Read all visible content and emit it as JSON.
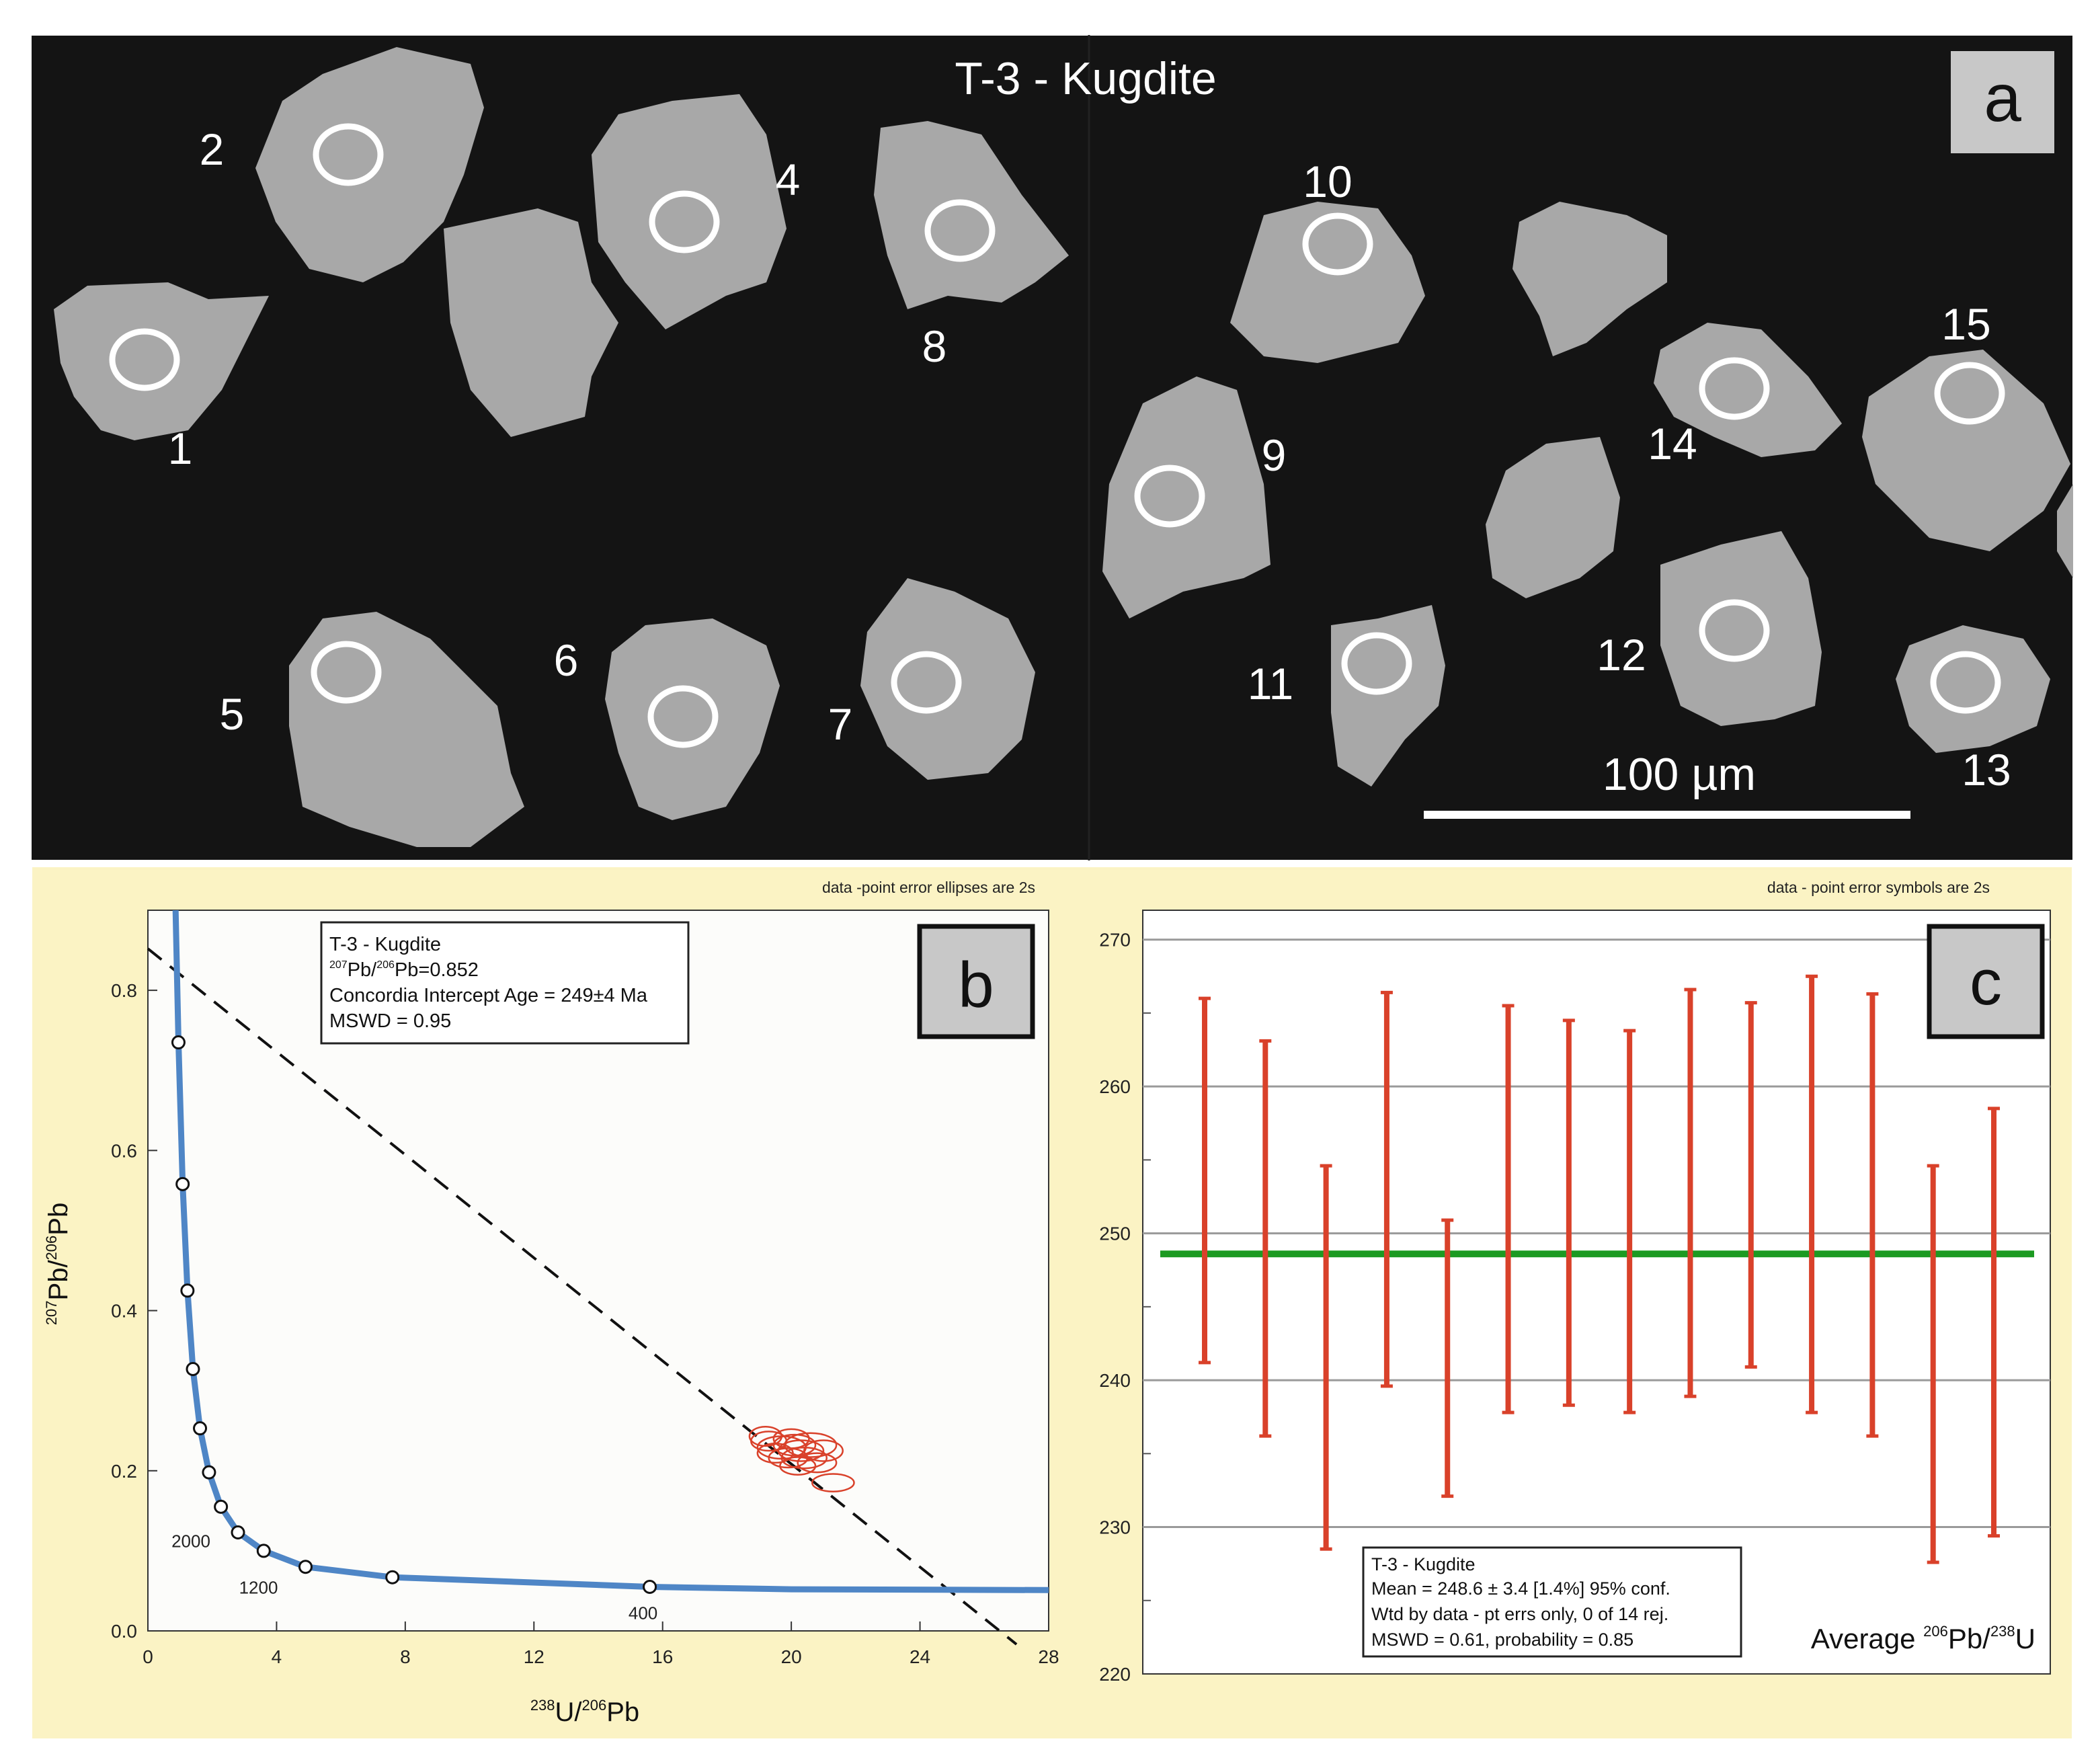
{
  "panel_a": {
    "title": "T-3 - Kugdite",
    "label": "a",
    "scale_bar_label": "100 µm",
    "grain_numbers": [
      "1",
      "2",
      "4",
      "5",
      "6",
      "7",
      "8",
      "9",
      "10",
      "11",
      "12",
      "13",
      "14",
      "15"
    ]
  },
  "chart_data": [
    {
      "type": "scatter",
      "panel_label": "b",
      "note": "data -point error ellipses are 2s",
      "xlabel_sup1": "238",
      "xlabel_base1": "U/",
      "xlabel_sup2": "206",
      "xlabel_base2": "Pb",
      "ylabel_sup1": "207",
      "ylabel_base1": "Pb/",
      "ylabel_sup2": "206",
      "ylabel_base2": "Pb",
      "xlim": [
        0,
        28
      ],
      "ylim": [
        0,
        0.9
      ],
      "x_ticks": [
        0,
        4,
        8,
        12,
        16,
        20,
        24,
        28
      ],
      "y_ticks": [
        0.0,
        0.2,
        0.4,
        0.6,
        0.8
      ],
      "x_tick_labels": [
        "0",
        "4",
        "8",
        "12",
        "16",
        "20",
        "24",
        "28"
      ],
      "y_tick_labels": [
        "0.0",
        "0.2",
        "0.4",
        "0.6",
        "0.8"
      ],
      "concordia_age_labels": [
        {
          "label": "2000",
          "x": 2.8,
          "y": 0.123
        },
        {
          "label": "1200",
          "x": 4.9,
          "y": 0.08
        },
        {
          "label": "400",
          "x": 15.6,
          "y": 0.055
        }
      ],
      "concordia_points": [
        {
          "x": 0.95,
          "y": 0.735
        },
        {
          "x": 1.08,
          "y": 0.558
        },
        {
          "x": 1.23,
          "y": 0.425
        },
        {
          "x": 1.4,
          "y": 0.327
        },
        {
          "x": 1.62,
          "y": 0.253
        },
        {
          "x": 1.9,
          "y": 0.198
        },
        {
          "x": 2.27,
          "y": 0.155
        },
        {
          "x": 2.8,
          "y": 0.123
        },
        {
          "x": 3.6,
          "y": 0.1
        },
        {
          "x": 4.9,
          "y": 0.08
        },
        {
          "x": 7.6,
          "y": 0.067
        },
        {
          "x": 15.6,
          "y": 0.055
        }
      ],
      "discordia": {
        "x0": 0,
        "y0": 0.852,
        "x1": 27.0,
        "y1": -0.017
      },
      "ellipses": [
        {
          "x": 19.3,
          "y": 0.237,
          "rx": 0.55,
          "ry": 0.012
        },
        {
          "x": 19.7,
          "y": 0.229,
          "rx": 0.75,
          "ry": 0.014
        },
        {
          "x": 20.1,
          "y": 0.232,
          "rx": 0.65,
          "ry": 0.013
        },
        {
          "x": 19.5,
          "y": 0.222,
          "rx": 0.55,
          "ry": 0.012
        },
        {
          "x": 20.3,
          "y": 0.225,
          "rx": 0.7,
          "ry": 0.013
        },
        {
          "x": 20.6,
          "y": 0.232,
          "rx": 0.8,
          "ry": 0.015
        },
        {
          "x": 19.9,
          "y": 0.216,
          "rx": 0.6,
          "ry": 0.012
        },
        {
          "x": 20.4,
          "y": 0.216,
          "rx": 0.7,
          "ry": 0.013
        },
        {
          "x": 20.8,
          "y": 0.21,
          "rx": 0.6,
          "ry": 0.012
        },
        {
          "x": 19.2,
          "y": 0.243,
          "rx": 0.5,
          "ry": 0.012
        },
        {
          "x": 20.0,
          "y": 0.24,
          "rx": 0.55,
          "ry": 0.012
        },
        {
          "x": 21.0,
          "y": 0.225,
          "rx": 0.6,
          "ry": 0.013
        },
        {
          "x": 20.2,
          "y": 0.206,
          "rx": 0.55,
          "ry": 0.011
        },
        {
          "x": 21.3,
          "y": 0.185,
          "rx": 0.65,
          "ry": 0.011
        }
      ],
      "legend": {
        "line1": "T-3 - Kugdite",
        "line2_sup1": "207",
        "line2_a": "Pb/",
        "line2_sup2": "206",
        "line2_b": "Pb=0.852",
        "line3": "Concordia Intercept Age = 249±4 Ma",
        "line4": "MSWD = 0.95"
      }
    },
    {
      "type": "errorbar",
      "panel_label": "c",
      "note": "data - point error symbols are 2s",
      "ylim": [
        220,
        272
      ],
      "y_ticks": [
        220,
        230,
        240,
        250,
        260,
        270
      ],
      "y_tick_labels": [
        "220",
        "230",
        "240",
        "250",
        "260",
        "270"
      ],
      "mean": 248.6,
      "bars": [
        {
          "low": 241.2,
          "high": 266.0
        },
        {
          "low": 236.2,
          "high": 263.1
        },
        {
          "low": 228.5,
          "high": 254.6
        },
        {
          "low": 239.6,
          "high": 266.4
        },
        {
          "low": 232.1,
          "high": 250.9
        },
        {
          "low": 237.8,
          "high": 265.5
        },
        {
          "low": 238.3,
          "high": 264.5
        },
        {
          "low": 237.8,
          "high": 263.8
        },
        {
          "low": 238.9,
          "high": 266.6
        },
        {
          "low": 240.9,
          "high": 265.7
        },
        {
          "low": 237.8,
          "high": 267.5
        },
        {
          "low": 236.2,
          "high": 266.3
        },
        {
          "low": 227.6,
          "high": 254.6
        },
        {
          "low": 229.4,
          "high": 258.5
        }
      ],
      "axis_label_a": "Average ",
      "axis_label_sup1": "206",
      "axis_label_b": "Pb/",
      "axis_label_sup2": "238",
      "axis_label_c": "U",
      "legend": {
        "line1": "T-3 - Kugdite",
        "line2": "Mean  = 248.6 ± 3.4  [1.4%]  95% conf.",
        "line3": "Wtd  by data - pt errs only,  0 of 14 rej.",
        "line4": "MSWD = 0.61, probability = 0.85"
      }
    }
  ],
  "colors": {
    "photo_bg": "#141414",
    "grain": "#a8a8a8",
    "chart_frame": "#fbf3c4",
    "curve": "#4f86c6",
    "ellipse": "#d9412a",
    "errbar": "#d9412a",
    "mean_line": "#1c9a22"
  }
}
